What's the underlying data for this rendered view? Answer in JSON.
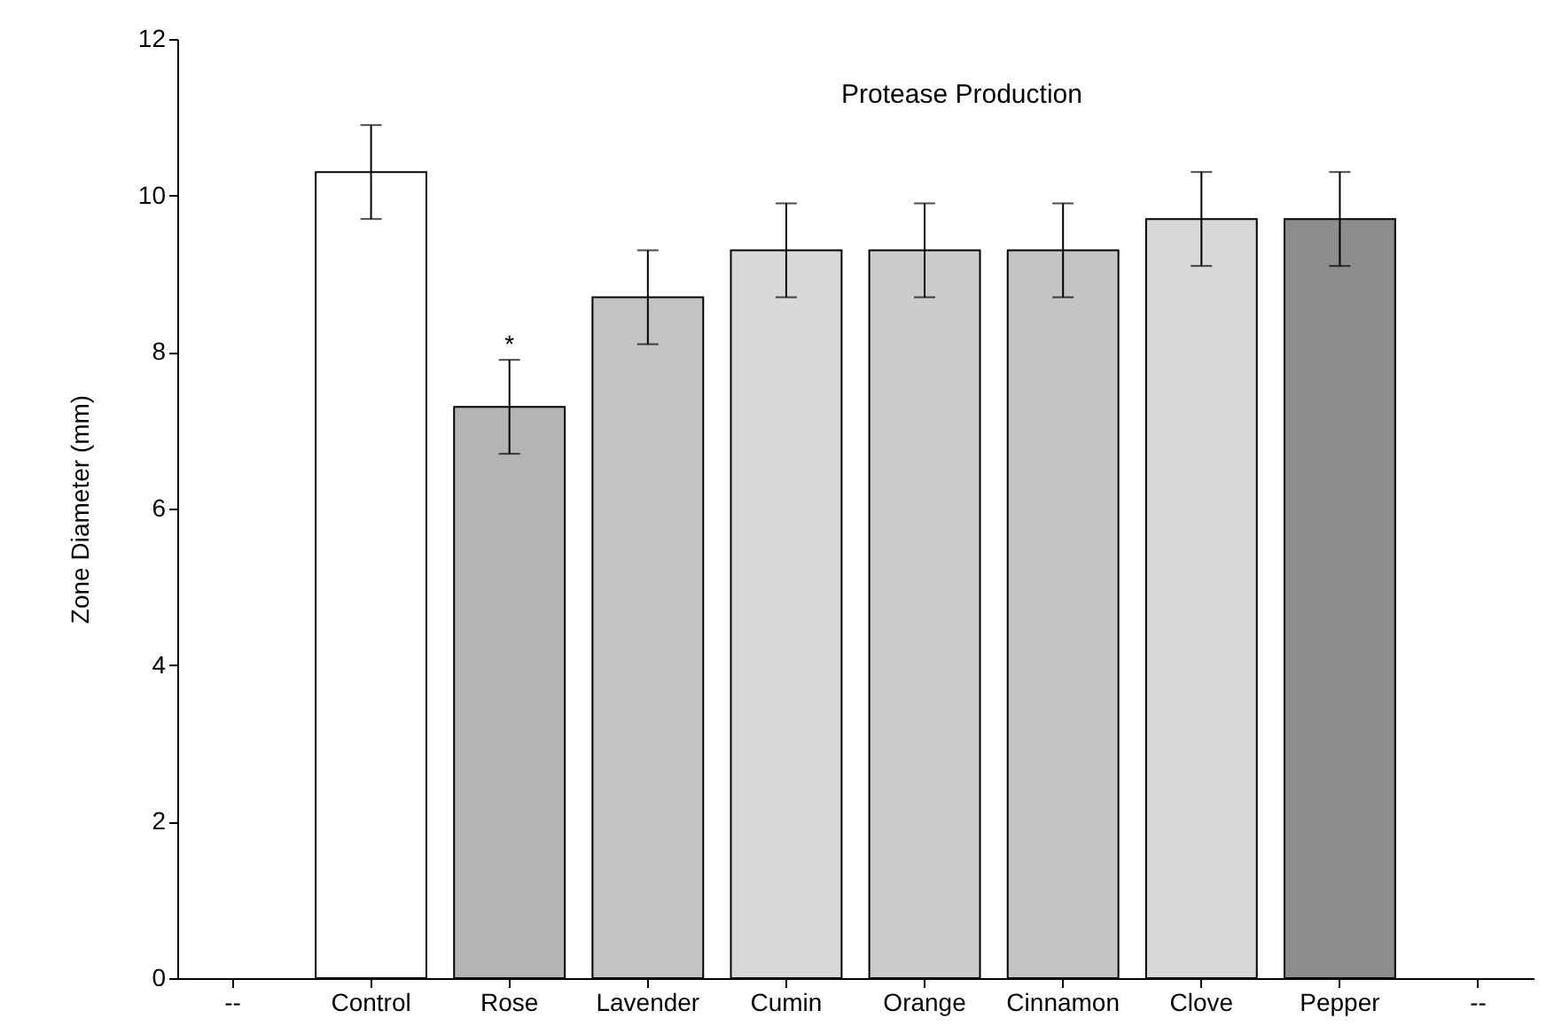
{
  "chart_data": {
    "type": "bar",
    "title": "Protease Production",
    "ylabel": "Zone Diameter (mm)",
    "categories": [
      "--",
      "Control",
      "Rose",
      "Lavender",
      "Cumin",
      "Orange",
      "Cinnamon",
      "Clove",
      "Pepper",
      "--"
    ],
    "values": [
      null,
      10.3,
      7.3,
      8.7,
      9.3,
      9.3,
      9.3,
      9.7,
      9.7,
      null
    ],
    "errors": [
      null,
      0.6,
      0.6,
      0.6,
      0.6,
      0.6,
      0.6,
      0.6,
      0.6,
      null
    ],
    "colors": [
      "#ffffff",
      "#ffffff",
      "#b4b4b4",
      "#c4c4c4",
      "#d8d8d8",
      "#cccccc",
      "#c4c4c4",
      "#d8d8d8",
      "#8c8c8c",
      "#ffffff"
    ],
    "annotations": [
      {
        "text": "*",
        "x": "Rose",
        "y": 7.9
      }
    ],
    "ylim": [
      0,
      12
    ],
    "yticks": [
      0,
      2,
      4,
      6,
      8,
      10,
      12
    ],
    "grid": false
  }
}
